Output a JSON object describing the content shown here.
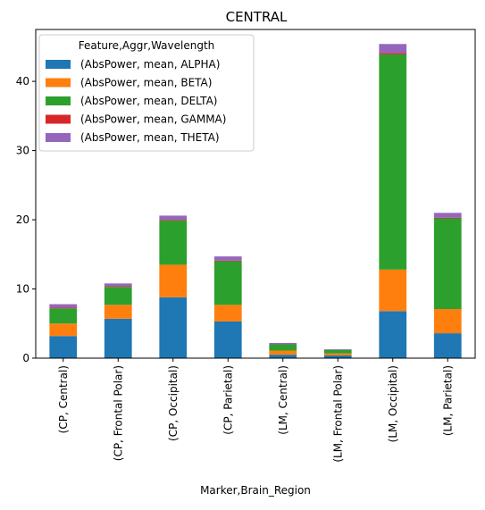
{
  "chart_data": {
    "type": "bar",
    "stacked": true,
    "title": "CENTRAL",
    "xlabel": "Marker,Brain_Region",
    "ylabel": "",
    "ylim": [
      0,
      47.5
    ],
    "yticks": [
      0,
      10,
      20,
      30,
      40
    ],
    "grid": false,
    "legend_title": "Feature,Aggr,Wavelength",
    "legend_position": "top-left",
    "categories": [
      "(CP, Central)",
      "(CP, Frontal Polar)",
      "(CP, Occipital)",
      "(CP, Parietal)",
      "(LM, Central)",
      "(LM, Frontal Polar)",
      "(LM, Occipital)",
      "(LM, Parietal)"
    ],
    "series": [
      {
        "name": "(AbsPower, mean, ALPHA)",
        "color": "#1f77b4",
        "values": [
          3.2,
          5.7,
          8.8,
          5.3,
          0.5,
          0.4,
          6.8,
          3.6
        ]
      },
      {
        "name": "(AbsPower, mean, BETA)",
        "color": "#ff7f0e",
        "values": [
          1.8,
          2.0,
          4.7,
          2.4,
          0.6,
          0.3,
          6.0,
          3.5
        ]
      },
      {
        "name": "(AbsPower, mean, DELTA)",
        "color": "#2ca02c",
        "values": [
          2.2,
          2.6,
          6.4,
          6.3,
          0.9,
          0.5,
          31.1,
          13.1
        ]
      },
      {
        "name": "(AbsPower, mean, GAMMA)",
        "color": "#d62728",
        "values": [
          0.1,
          0.1,
          0.1,
          0.1,
          0.0,
          0.0,
          0.2,
          0.1
        ]
      },
      {
        "name": "(AbsPower, mean, THETA)",
        "color": "#9467bd",
        "values": [
          0.5,
          0.4,
          0.6,
          0.6,
          0.2,
          0.1,
          1.3,
          0.7
        ]
      }
    ]
  }
}
